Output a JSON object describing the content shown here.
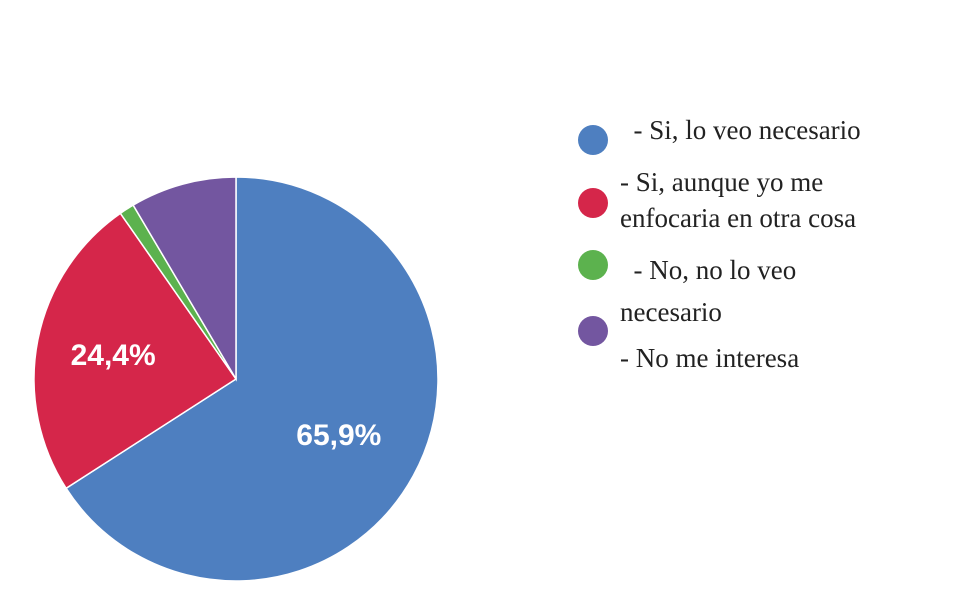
{
  "chart_data": {
    "type": "pie",
    "title": "",
    "slices": [
      {
        "label": "- Si, lo veo necesario",
        "value": 65.9,
        "color": "#4e7fc0",
        "data_label": "65,9%"
      },
      {
        "label": "- Si, aunque yo me enfocaria en otra cosa",
        "value": 24.4,
        "color": "#d5264a",
        "data_label": "24,4%"
      },
      {
        "label": "- No, no lo veo necesario",
        "value": 1.2,
        "color": "#5cb24e",
        "data_label": ""
      },
      {
        "label": "- No me interesa",
        "value": 8.5,
        "color": "#7356a0",
        "data_label": ""
      }
    ],
    "legend_position": "right"
  },
  "legend": {
    "lines": [
      "  - Si, lo veo necesario",
      "- Si, aunque yo me",
      "enfocaria en otra cosa",
      "  - No, no lo veo",
      "necesario",
      "- No me interesa"
    ],
    "dots": [
      {
        "color": "#4e7fc0",
        "name": "legend-dot-si-lo-veo-necesario"
      },
      {
        "color": "#d5264a",
        "name": "legend-dot-si-aunque"
      },
      {
        "color": "#5cb24e",
        "name": "legend-dot-no-lo-veo-necesario"
      },
      {
        "color": "#7356a0",
        "name": "legend-dot-no-me-interesa"
      }
    ]
  }
}
